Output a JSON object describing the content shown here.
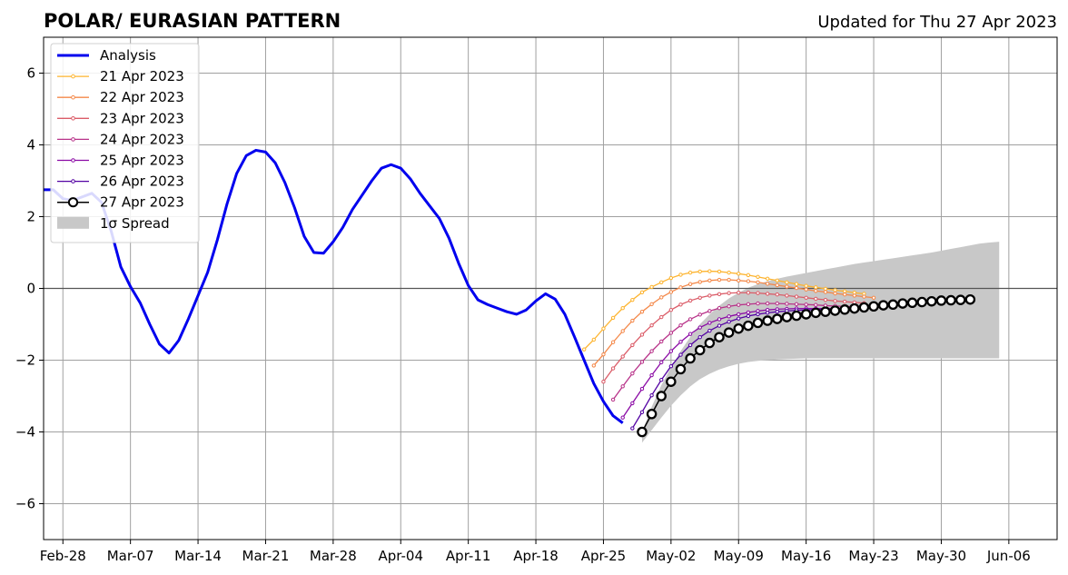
{
  "header": {
    "title": "POLAR/ EURASIAN  PATTERN",
    "updated": "Updated for Thu 27 Apr 2023"
  },
  "chart_data": {
    "type": "line",
    "title": "POLAR/ EURASIAN  PATTERN",
    "subtitle": "Updated for Thu 27 Apr 2023",
    "xlabel": "",
    "ylabel": "",
    "x_axis": {
      "type": "date",
      "min": "2023-02-26",
      "max": "2023-06-11",
      "ticks": [
        "2023-02-28",
        "2023-03-07",
        "2023-03-14",
        "2023-03-21",
        "2023-03-28",
        "2023-04-04",
        "2023-04-11",
        "2023-04-18",
        "2023-04-25",
        "2023-05-02",
        "2023-05-09",
        "2023-05-16",
        "2023-05-23",
        "2023-05-30",
        "2023-06-06"
      ],
      "tick_labels": [
        "Feb-28",
        "Mar-07",
        "Mar-14",
        "Mar-21",
        "Mar-28",
        "Apr-04",
        "Apr-11",
        "Apr-18",
        "Apr-25",
        "May-02",
        "May-09",
        "May-16",
        "May-23",
        "May-30",
        "Jun-06"
      ]
    },
    "y_axis": {
      "min": -7,
      "max": 7,
      "ticks": [
        -6,
        -4,
        -2,
        0,
        2,
        4,
        6
      ],
      "tick_labels": [
        "−6",
        "−4",
        "−2",
        "0",
        "2",
        "4",
        "6"
      ]
    },
    "grid": true,
    "zero_line": true,
    "legend_position": "top-left",
    "legend": [
      "Analysis",
      "21 Apr 2023",
      "22 Apr 2023",
      "23 Apr 2023",
      "24 Apr 2023",
      "25 Apr 2023",
      "26 Apr 2023",
      "27 Apr 2023",
      "1σ Spread"
    ],
    "analysis": {
      "name": "Analysis",
      "color": "#0000ee",
      "start_date": "2023-02-26",
      "values": [
        2.75,
        2.75,
        2.5,
        2.45,
        2.55,
        2.65,
        2.4,
        1.6,
        0.6,
        0.05,
        -0.4,
        -1.0,
        -1.55,
        -1.8,
        -1.45,
        -0.85,
        -0.2,
        0.45,
        1.35,
        2.35,
        3.2,
        3.7,
        3.85,
        3.8,
        3.5,
        2.95,
        2.25,
        1.45,
        1.0,
        0.98,
        1.3,
        1.7,
        2.2,
        2.6,
        3.0,
        3.35,
        3.45,
        3.35,
        3.05,
        2.65,
        2.3,
        1.95,
        1.4,
        0.7,
        0.08,
        -0.32,
        -0.45,
        -0.55,
        -0.65,
        -0.72,
        -0.6,
        -0.35,
        -0.15,
        -0.3,
        -0.72,
        -1.35,
        -2.0,
        -2.65,
        -3.15,
        -3.55,
        -3.75
      ]
    },
    "series": [
      {
        "name": "21 Apr 2023",
        "color": "#fdb42f",
        "start_date": "2023-04-23",
        "values": [
          -1.7,
          -1.43,
          -1.12,
          -0.82,
          -0.55,
          -0.32,
          -0.11,
          0.04,
          0.17,
          0.29,
          0.38,
          0.44,
          0.47,
          0.48,
          0.47,
          0.44,
          0.41,
          0.37,
          0.32,
          0.27,
          0.22,
          0.17,
          0.12,
          0.07,
          0.03,
          -0.01,
          -0.05,
          -0.08,
          -0.12,
          -0.15
        ]
      },
      {
        "name": "22 Apr 2023",
        "color": "#f48849",
        "start_date": "2023-04-24",
        "values": [
          -2.15,
          -1.84,
          -1.5,
          -1.19,
          -0.9,
          -0.65,
          -0.44,
          -0.25,
          -0.1,
          0.03,
          0.12,
          0.18,
          0.22,
          0.24,
          0.24,
          0.22,
          0.2,
          0.17,
          0.13,
          0.09,
          0.05,
          0.01,
          -0.03,
          -0.07,
          -0.1,
          -0.14,
          -0.17,
          -0.2,
          -0.23,
          -0.26
        ]
      },
      {
        "name": "23 Apr 2023",
        "color": "#db5c68",
        "start_date": "2023-04-25",
        "values": [
          -2.6,
          -2.23,
          -1.9,
          -1.58,
          -1.29,
          -1.03,
          -0.8,
          -0.6,
          -0.45,
          -0.34,
          -0.26,
          -0.2,
          -0.16,
          -0.13,
          -0.12,
          -0.12,
          -0.13,
          -0.15,
          -0.17,
          -0.2,
          -0.23,
          -0.26,
          -0.29,
          -0.32,
          -0.35,
          -0.37,
          -0.39,
          -0.41
        ]
      },
      {
        "name": "24 Apr 2023",
        "color": "#b83289",
        "start_date": "2023-04-26",
        "values": [
          -3.1,
          -2.73,
          -2.37,
          -2.05,
          -1.75,
          -1.48,
          -1.24,
          -1.03,
          -0.86,
          -0.73,
          -0.63,
          -0.55,
          -0.5,
          -0.46,
          -0.44,
          -0.42,
          -0.42,
          -0.42,
          -0.43,
          -0.44,
          -0.45,
          -0.46,
          -0.48,
          -0.49,
          -0.5,
          -0.51
        ]
      },
      {
        "name": "25 Apr 2023",
        "color": "#8b0aa5",
        "start_date": "2023-04-27",
        "values": [
          -3.6,
          -3.2,
          -2.8,
          -2.42,
          -2.06,
          -1.75,
          -1.49,
          -1.27,
          -1.09,
          -0.96,
          -0.86,
          -0.78,
          -0.72,
          -0.67,
          -0.63,
          -0.6,
          -0.58,
          -0.57,
          -0.56,
          -0.56,
          -0.56,
          -0.56,
          -0.56,
          -0.56
        ]
      },
      {
        "name": "26 Apr 2023",
        "color": "#5302a3",
        "start_date": "2023-04-28",
        "values": [
          -3.9,
          -3.45,
          -2.98,
          -2.55,
          -2.17,
          -1.85,
          -1.58,
          -1.36,
          -1.18,
          -1.04,
          -0.93,
          -0.84,
          -0.77,
          -0.72,
          -0.68,
          -0.65,
          -0.63,
          -0.61,
          -0.6,
          -0.59,
          -0.58,
          -0.58,
          -0.58
        ]
      },
      {
        "name": "27 Apr 2023",
        "color": "#000000",
        "start_date": "2023-04-29",
        "values": [
          -4.0,
          -3.5,
          -3.0,
          -2.6,
          -2.25,
          -1.95,
          -1.72,
          -1.52,
          -1.36,
          -1.23,
          -1.12,
          -1.04,
          -0.96,
          -0.9,
          -0.85,
          -0.8,
          -0.76,
          -0.72,
          -0.68,
          -0.65,
          -0.62,
          -0.59,
          -0.56,
          -0.53,
          -0.5,
          -0.47,
          -0.45,
          -0.42,
          -0.4,
          -0.38,
          -0.36,
          -0.34,
          -0.33,
          -0.32,
          -0.31
        ]
      }
    ],
    "spread": {
      "name": "1σ Spread",
      "color": "#c8c8c8",
      "start_date": "2023-04-29",
      "upper": [
        -4.0,
        -3.3,
        -2.7,
        -2.2,
        -1.75,
        -1.35,
        -1.0,
        -0.72,
        -0.48,
        -0.28,
        -0.12,
        0.02,
        0.12,
        0.2,
        0.27,
        0.33,
        0.38,
        0.43,
        0.48,
        0.53,
        0.58,
        0.63,
        0.68,
        0.72,
        0.76,
        0.8,
        0.84,
        0.88,
        0.92,
        0.96,
        1.0,
        1.05,
        1.1,
        1.15,
        1.2,
        1.25,
        1.28,
        1.3
      ],
      "lower": [
        -4.3,
        -3.95,
        -3.6,
        -3.27,
        -2.98,
        -2.73,
        -2.53,
        -2.38,
        -2.26,
        -2.17,
        -2.1,
        -2.05,
        -2.02,
        -2.0,
        -1.98,
        -1.97,
        -1.96,
        -1.95,
        -1.95,
        -1.95,
        -1.95,
        -1.95,
        -1.95,
        -1.95,
        -1.95,
        -1.95,
        -1.95,
        -1.95,
        -1.95,
        -1.95,
        -1.95,
        -1.95,
        -1.95,
        -1.95,
        -1.95,
        -1.95,
        -1.95,
        -1.95
      ]
    }
  }
}
